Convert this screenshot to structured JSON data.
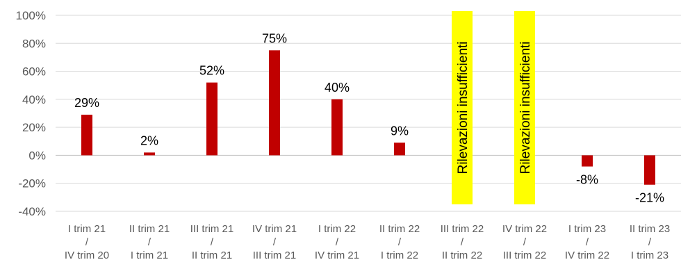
{
  "chart_data": {
    "type": "bar",
    "title": "",
    "xlabel": "",
    "ylabel": "",
    "ylim": [
      -40,
      100
    ],
    "y_tick_values": [
      100,
      80,
      60,
      40,
      20,
      0,
      -20,
      -40
    ],
    "y_tick_labels": [
      "100%",
      "80%",
      "60%",
      "40%",
      "20%",
      "0%",
      "-20%",
      "-40%"
    ],
    "grid": "horizontal",
    "legend": "none",
    "bar_color": "#C00000",
    "annotation_bg": "#FFFF00",
    "categories": [
      [
        "I trim 21",
        "/",
        "IV trim 20"
      ],
      [
        "II trim 21",
        "/",
        "I trim 21"
      ],
      [
        "III trim 21",
        "/",
        "II trim 21"
      ],
      [
        "IV trim 21",
        "/",
        "III trim 21"
      ],
      [
        "I trim 22",
        "/",
        "IV trim 21"
      ],
      [
        "II trim 22",
        "/",
        "I trim 22"
      ],
      [
        "III trim 22",
        "/",
        "II trim 22"
      ],
      [
        "IV trim 22",
        "/",
        "III trim 22"
      ],
      [
        "I trim 23",
        "/",
        "IV trim 22"
      ],
      [
        "II trim 23",
        "/",
        "I trim 23"
      ]
    ],
    "values": [
      29,
      2,
      52,
      75,
      40,
      9,
      null,
      null,
      -8,
      -21
    ],
    "data_labels": [
      "29%",
      "2%",
      "52%",
      "75%",
      "40%",
      "9%",
      "",
      "",
      "-8%",
      "-21%"
    ],
    "annotations": [
      {
        "category_index": 6,
        "text": "Rilevazioni insufficienti"
      },
      {
        "category_index": 7,
        "text": "Rilevazioni insufficienti"
      }
    ]
  }
}
